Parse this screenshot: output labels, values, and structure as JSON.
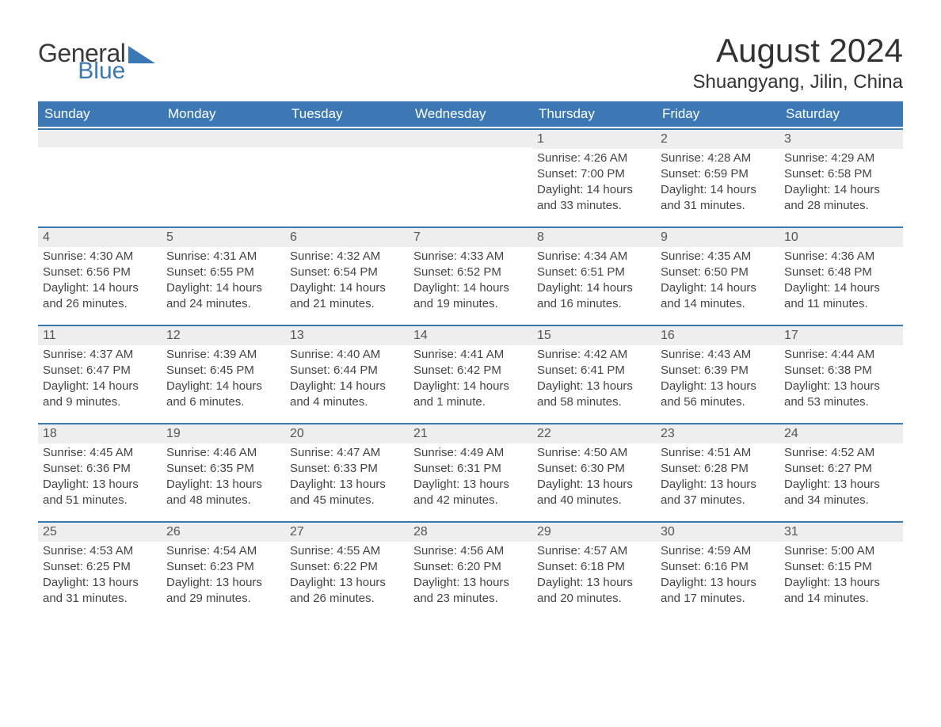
{
  "logo": {
    "general": "General",
    "blue": "Blue",
    "shape_color": "#3c79b4"
  },
  "title": "August 2024",
  "location": "Shuangyang, Jilin, China",
  "colors": {
    "header_bg": "#3c79b4",
    "header_text": "#ffffff",
    "daynum_bg": "#eeeeee",
    "row_border": "#3c79b4",
    "body_text": "#444444",
    "page_bg": "#ffffff"
  },
  "typography": {
    "title_fontsize": 42,
    "location_fontsize": 24,
    "weekday_fontsize": 17,
    "body_fontsize": 15
  },
  "layout": {
    "columns": 7,
    "rows": 5,
    "leading_blanks": 4
  },
  "weekdays": [
    "Sunday",
    "Monday",
    "Tuesday",
    "Wednesday",
    "Thursday",
    "Friday",
    "Saturday"
  ],
  "days": [
    {
      "n": 1,
      "sunrise": "4:26 AM",
      "sunset": "7:00 PM",
      "daylight": "14 hours and 33 minutes."
    },
    {
      "n": 2,
      "sunrise": "4:28 AM",
      "sunset": "6:59 PM",
      "daylight": "14 hours and 31 minutes."
    },
    {
      "n": 3,
      "sunrise": "4:29 AM",
      "sunset": "6:58 PM",
      "daylight": "14 hours and 28 minutes."
    },
    {
      "n": 4,
      "sunrise": "4:30 AM",
      "sunset": "6:56 PM",
      "daylight": "14 hours and 26 minutes."
    },
    {
      "n": 5,
      "sunrise": "4:31 AM",
      "sunset": "6:55 PM",
      "daylight": "14 hours and 24 minutes."
    },
    {
      "n": 6,
      "sunrise": "4:32 AM",
      "sunset": "6:54 PM",
      "daylight": "14 hours and 21 minutes."
    },
    {
      "n": 7,
      "sunrise": "4:33 AM",
      "sunset": "6:52 PM",
      "daylight": "14 hours and 19 minutes."
    },
    {
      "n": 8,
      "sunrise": "4:34 AM",
      "sunset": "6:51 PM",
      "daylight": "14 hours and 16 minutes."
    },
    {
      "n": 9,
      "sunrise": "4:35 AM",
      "sunset": "6:50 PM",
      "daylight": "14 hours and 14 minutes."
    },
    {
      "n": 10,
      "sunrise": "4:36 AM",
      "sunset": "6:48 PM",
      "daylight": "14 hours and 11 minutes."
    },
    {
      "n": 11,
      "sunrise": "4:37 AM",
      "sunset": "6:47 PM",
      "daylight": "14 hours and 9 minutes."
    },
    {
      "n": 12,
      "sunrise": "4:39 AM",
      "sunset": "6:45 PM",
      "daylight": "14 hours and 6 minutes."
    },
    {
      "n": 13,
      "sunrise": "4:40 AM",
      "sunset": "6:44 PM",
      "daylight": "14 hours and 4 minutes."
    },
    {
      "n": 14,
      "sunrise": "4:41 AM",
      "sunset": "6:42 PM",
      "daylight": "14 hours and 1 minute."
    },
    {
      "n": 15,
      "sunrise": "4:42 AM",
      "sunset": "6:41 PM",
      "daylight": "13 hours and 58 minutes."
    },
    {
      "n": 16,
      "sunrise": "4:43 AM",
      "sunset": "6:39 PM",
      "daylight": "13 hours and 56 minutes."
    },
    {
      "n": 17,
      "sunrise": "4:44 AM",
      "sunset": "6:38 PM",
      "daylight": "13 hours and 53 minutes."
    },
    {
      "n": 18,
      "sunrise": "4:45 AM",
      "sunset": "6:36 PM",
      "daylight": "13 hours and 51 minutes."
    },
    {
      "n": 19,
      "sunrise": "4:46 AM",
      "sunset": "6:35 PM",
      "daylight": "13 hours and 48 minutes."
    },
    {
      "n": 20,
      "sunrise": "4:47 AM",
      "sunset": "6:33 PM",
      "daylight": "13 hours and 45 minutes."
    },
    {
      "n": 21,
      "sunrise": "4:49 AM",
      "sunset": "6:31 PM",
      "daylight": "13 hours and 42 minutes."
    },
    {
      "n": 22,
      "sunrise": "4:50 AM",
      "sunset": "6:30 PM",
      "daylight": "13 hours and 40 minutes."
    },
    {
      "n": 23,
      "sunrise": "4:51 AM",
      "sunset": "6:28 PM",
      "daylight": "13 hours and 37 minutes."
    },
    {
      "n": 24,
      "sunrise": "4:52 AM",
      "sunset": "6:27 PM",
      "daylight": "13 hours and 34 minutes."
    },
    {
      "n": 25,
      "sunrise": "4:53 AM",
      "sunset": "6:25 PM",
      "daylight": "13 hours and 31 minutes."
    },
    {
      "n": 26,
      "sunrise": "4:54 AM",
      "sunset": "6:23 PM",
      "daylight": "13 hours and 29 minutes."
    },
    {
      "n": 27,
      "sunrise": "4:55 AM",
      "sunset": "6:22 PM",
      "daylight": "13 hours and 26 minutes."
    },
    {
      "n": 28,
      "sunrise": "4:56 AM",
      "sunset": "6:20 PM",
      "daylight": "13 hours and 23 minutes."
    },
    {
      "n": 29,
      "sunrise": "4:57 AM",
      "sunset": "6:18 PM",
      "daylight": "13 hours and 20 minutes."
    },
    {
      "n": 30,
      "sunrise": "4:59 AM",
      "sunset": "6:16 PM",
      "daylight": "13 hours and 17 minutes."
    },
    {
      "n": 31,
      "sunrise": "5:00 AM",
      "sunset": "6:15 PM",
      "daylight": "13 hours and 14 minutes."
    }
  ],
  "labels": {
    "sunrise": "Sunrise:",
    "sunset": "Sunset:",
    "daylight": "Daylight:"
  }
}
